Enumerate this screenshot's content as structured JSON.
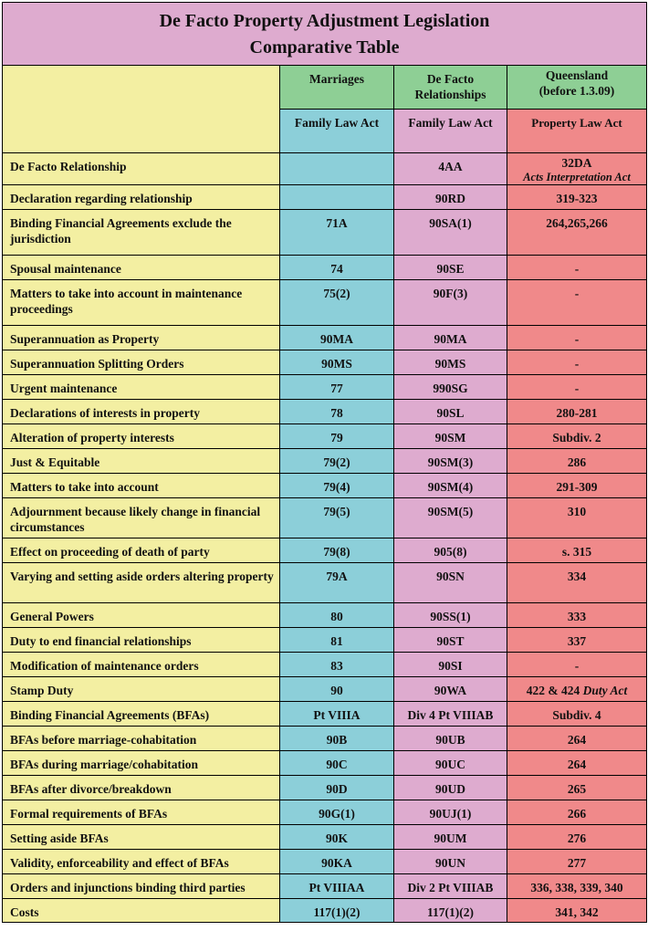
{
  "title": {
    "line1": "De Facto Property Adjustment Legislation",
    "line2": "Comparative Table"
  },
  "header": {
    "col2_name": "Marriages",
    "col3_name": "De Facto Relationships",
    "col4_name_line1": "Queensland",
    "col4_name_line2": "(before 1.3.09)",
    "col2_act": "Family Law Act",
    "col3_act": "Family Law Act",
    "col4_act": "Property Law Act"
  },
  "row0": {
    "topic": "De Facto Relationship",
    "marriages": "",
    "de_facto": "4AA",
    "qld": "32DA",
    "qld_note": "Acts Interpretation Act"
  },
  "rows": [
    {
      "topic": "Declaration regarding relationship",
      "marriages": "",
      "de_facto": "90RD",
      "qld": "319-323"
    },
    {
      "topic": "Binding Financial Agreements exclude the jurisdiction",
      "marriages": "71A",
      "de_facto": "90SA(1)",
      "qld": "264,265,266"
    },
    {
      "topic": "Spousal maintenance",
      "marriages": "74",
      "de_facto": "90SE",
      "qld": "-"
    },
    {
      "topic": "Matters to take into account in maintenance proceedings",
      "marriages": "75(2)",
      "de_facto": "90F(3)",
      "qld": "-"
    },
    {
      "topic": "Superannuation as Property",
      "marriages": "90MA",
      "de_facto": "90MA",
      "qld": "-"
    },
    {
      "topic": "Superannuation Splitting Orders",
      "marriages": "90MS",
      "de_facto": "90MS",
      "qld": "-"
    },
    {
      "topic": "Urgent maintenance",
      "marriages": "77",
      "de_facto": "990SG",
      "qld": "-"
    },
    {
      "topic": "Declarations of interests in property",
      "marriages": "78",
      "de_facto": "90SL",
      "qld": "280-281"
    },
    {
      "topic": "Alteration of property interests",
      "marriages": "79",
      "de_facto": "90SM",
      "qld": "Subdiv. 2"
    },
    {
      "topic": "Just & Equitable",
      "marriages": "79(2)",
      "de_facto": "90SM(3)",
      "qld": "286"
    },
    {
      "topic": "Matters to take into account",
      "marriages": "79(4)",
      "de_facto": "90SM(4)",
      "qld": "291-309"
    },
    {
      "topic": "Adjournment because likely change in financial circumstances",
      "marriages": "79(5)",
      "de_facto": "90SM(5)",
      "qld": "310"
    },
    {
      "topic": "Effect on proceeding of death of party",
      "marriages": "79(8)",
      "de_facto": "905(8)",
      "qld": "s. 315"
    },
    {
      "topic": "Varying and setting aside orders altering property",
      "marriages": "79A",
      "de_facto": "90SN",
      "qld": "334"
    },
    {
      "topic": "General Powers",
      "marriages": "80",
      "de_facto": "90SS(1)",
      "qld": "333"
    },
    {
      "topic": "Duty to end financial relationships",
      "marriages": "81",
      "de_facto": "90ST",
      "qld": "337"
    },
    {
      "topic": "Modification of maintenance orders",
      "marriages": "83",
      "de_facto": "90SI",
      "qld": "-"
    }
  ],
  "stamp_row": {
    "topic": "Stamp Duty",
    "marriages": "90",
    "de_facto": "90WA",
    "qld": "422 & 424",
    "qld_note": "Duty Act"
  },
  "rows2": [
    {
      "topic": "Binding Financial Agreements (BFAs)",
      "marriages": "Pt VIIIA",
      "de_facto": "Div 4 Pt VIIIAB",
      "qld": "Subdiv. 4"
    },
    {
      "topic": "BFAs before marriage-cohabitation",
      "marriages": "90B",
      "de_facto": "90UB",
      "qld": "264"
    },
    {
      "topic": "BFAs during marriage/cohabitation",
      "marriages": "90C",
      "de_facto": "90UC",
      "qld": "264"
    },
    {
      "topic": "BFAs after divorce/breakdown",
      "marriages": "90D",
      "de_facto": "90UD",
      "qld": "265"
    },
    {
      "topic": "Formal requirements of BFAs",
      "marriages": "90G(1)",
      "de_facto": "90UJ(1)",
      "qld": "266"
    },
    {
      "topic": "Setting aside BFAs",
      "marriages": "90K",
      "de_facto": "90UM",
      "qld": "276"
    },
    {
      "topic": "Validity, enforceability and effect of BFAs",
      "marriages": "90KA",
      "de_facto": "90UN",
      "qld": "277"
    },
    {
      "topic": "Orders and injunctions binding third parties",
      "marriages": "Pt VIIIAA",
      "de_facto": "Div 2 Pt VIIIAB",
      "qld": "336, 338, 339, 340"
    },
    {
      "topic": "Costs",
      "marriages": "117(1)(2)",
      "de_facto": "117(1)(2)",
      "qld": "341, 342"
    }
  ],
  "colors": {
    "topic_col": "#f3efa2",
    "marriages_col": "#8ccfd9",
    "de_facto_col": "#deabcf",
    "qld_col": "#f0898a",
    "header_green": "#8ecf95",
    "title_bg": "#deabcf"
  }
}
